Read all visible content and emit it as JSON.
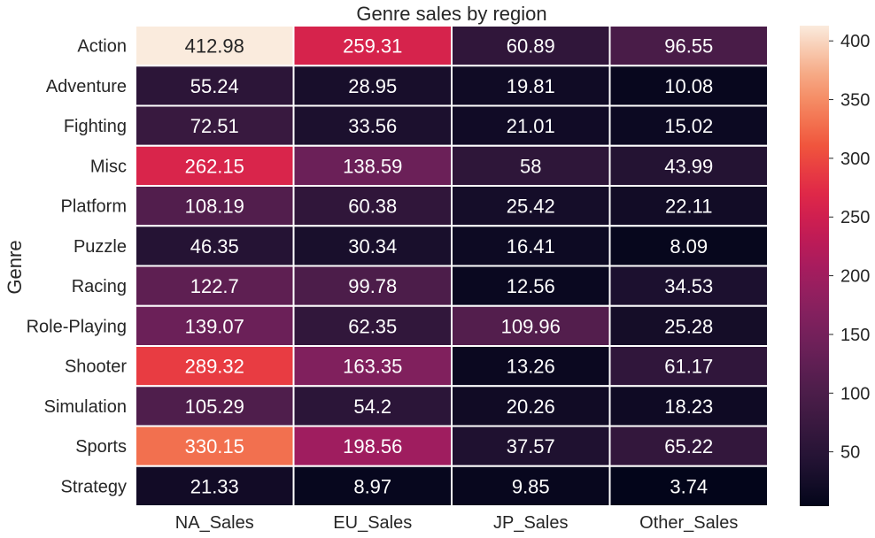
{
  "chart_data": {
    "type": "heatmap",
    "title": "Genre sales by region",
    "xlabel": "",
    "ylabel": "Genre",
    "columns": [
      "NA_Sales",
      "EU_Sales",
      "JP_Sales",
      "Other_Sales"
    ],
    "rows": [
      "Action",
      "Adventure",
      "Fighting",
      "Misc",
      "Platform",
      "Puzzle",
      "Racing",
      "Role-Playing",
      "Shooter",
      "Simulation",
      "Sports",
      "Strategy"
    ],
    "values": [
      [
        412.98,
        259.31,
        60.89,
        96.55
      ],
      [
        55.24,
        28.95,
        19.81,
        10.08
      ],
      [
        72.51,
        33.56,
        21.01,
        15.02
      ],
      [
        262.15,
        138.59,
        58,
        43.99
      ],
      [
        108.19,
        60.38,
        25.42,
        22.11
      ],
      [
        46.35,
        30.34,
        16.41,
        8.09
      ],
      [
        122.7,
        99.78,
        12.56,
        34.53
      ],
      [
        139.07,
        62.35,
        109.96,
        25.28
      ],
      [
        289.32,
        163.35,
        13.26,
        61.17
      ],
      [
        105.29,
        54.2,
        20.26,
        18.23
      ],
      [
        330.15,
        198.56,
        37.57,
        65.22
      ],
      [
        21.33,
        8.97,
        9.85,
        3.74
      ]
    ],
    "colorbar": {
      "min": 3.74,
      "max": 412.98,
      "ticks": [
        50,
        100,
        150,
        200,
        250,
        300,
        350,
        400
      ],
      "colormap": "rocket"
    },
    "annotations": true,
    "grid": false,
    "cell_border_color": "#ffffff"
  }
}
